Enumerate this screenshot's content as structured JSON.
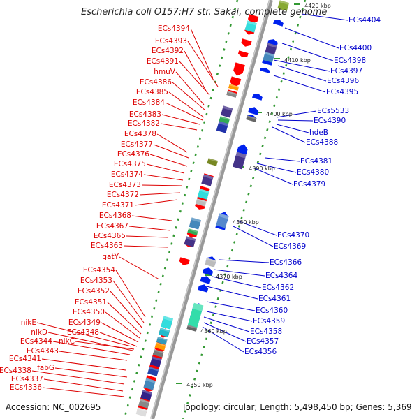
{
  "title": "Escherichia coli O157:H7 str. Sakai, complete genome",
  "footer": {
    "accession": "Accession: NC_002695",
    "summary": "Topology: circular; Length: 5,498,450 bp; Genes: 5,369"
  },
  "colors": {
    "forward_label": "#dd0000",
    "reverse_label": "#0000cc",
    "forward_gene": "#ff0000",
    "reverse_gene": "#0022ee",
    "backbone": "#999999",
    "tick": "#339933"
  },
  "tick_labels": [
    "4420 kbp",
    "4410 kbp",
    "4400 kbp",
    "4390 kbp",
    "4380 kbp",
    "4370 kbp",
    "4360 kbp",
    "4350 kbp"
  ],
  "left_labels": [
    "ECs4394",
    "ECs4393",
    "ECs4392",
    "ECs4391",
    "hmuV",
    "ECs4386",
    "ECs4385",
    "ECs4384",
    "ECs4383",
    "ECs4382",
    "ECs4378",
    "ECs4377",
    "ECs4376",
    "ECs4375",
    "ECs4374",
    "ECs4373",
    "ECs4372",
    "ECs4371",
    "ECs4368",
    "ECs4367",
    "ECs4365",
    "ECs4363",
    "gatY",
    "ECs4354",
    "ECs4353",
    "ECs4352",
    "ECs4351",
    "ECs4350",
    "ECs4349",
    "ECs4348",
    "nikE",
    "nikD",
    "ECs4344",
    "nikC",
    "ECs4343",
    "ECs4341",
    "fabG",
    "ECs4338",
    "ECs4337",
    "ECs4336"
  ],
  "right_labels": [
    "ECs4404",
    "ECs4400",
    "ECs4398",
    "ECs4397",
    "ECs4396",
    "ECs4395",
    "ECs5533",
    "ECs4390",
    "hdeB",
    "ECs4388",
    "ECs4381",
    "ECs4380",
    "ECs4379",
    "ECs4370",
    "ECs4369",
    "ECs4366",
    "ECs4364",
    "ECs4362",
    "ECs4361",
    "ECs4360",
    "ECs4359",
    "ECs4358",
    "ECs4357",
    "ECs4356"
  ]
}
